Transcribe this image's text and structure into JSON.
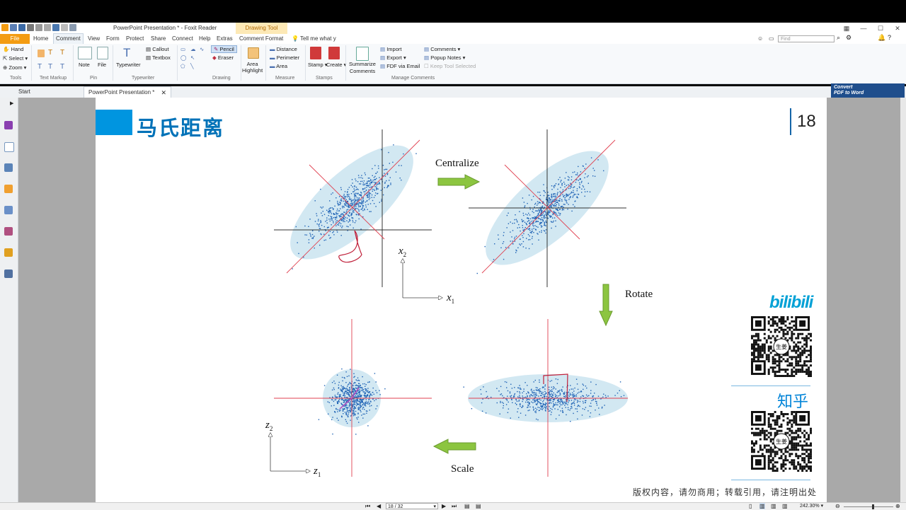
{
  "window": {
    "title": "PowerPoint Presentation * - Foxit Reader",
    "context_tab": "Drawing Tool"
  },
  "menu": {
    "file": "File",
    "items": [
      "Home",
      "Comment",
      "View",
      "Form",
      "Protect",
      "Share",
      "Connect",
      "Help",
      "Extras",
      "Comment Format"
    ],
    "active": "Comment",
    "tell_me": "Tell me what y",
    "find_placeholder": "Find"
  },
  "ribbon": {
    "tools": {
      "hand": "Hand",
      "select": "Select",
      "zoom": "Zoom",
      "group": "Tools"
    },
    "text_markup": {
      "group": "Text Markup"
    },
    "pin": {
      "note": "Note",
      "file": "File",
      "group": "Pin"
    },
    "typewriter": {
      "typewriter": "Typewriter",
      "callout": "Callout",
      "textbox": "Textbox",
      "group": "Typewriter"
    },
    "drawing": {
      "pencil": "Pencil",
      "eraser": "Eraser",
      "group": "Drawing"
    },
    "area_highlight": "Area\nHighlight",
    "measure": {
      "distance": "Distance",
      "perimeter": "Perimeter",
      "area": "Area",
      "group": "Measure"
    },
    "stamps": {
      "stamp": "Stamp",
      "create": "Create",
      "group": "Stamps"
    },
    "manage": {
      "summarize": "Summarize\nComments",
      "import": "Import",
      "export": "Export",
      "fdf_email": "FDF via Email",
      "comments": "Comments",
      "popup_notes": "Popup Notes",
      "keep_tool": "Keep Tool Selected",
      "group": "Manage Comments"
    }
  },
  "tabs": {
    "start": "Start",
    "doc": "PowerPoint Presentation *"
  },
  "convert": {
    "line1": "Convert",
    "line2": "PDF to Word"
  },
  "slide": {
    "heading": "马氏距离",
    "page_number": "18",
    "labels": {
      "centralize": "Centralize",
      "rotate": "Rotate",
      "scale": "Scale"
    },
    "axes_top": {
      "x": "x",
      "x_sub": "1",
      "y": "x",
      "y_sub": "2"
    },
    "axes_bottom": {
      "x": "z",
      "x_sub": "1",
      "y": "z",
      "y_sub": "2"
    },
    "brand1": "bilibili",
    "brand2": "知乎",
    "qr_center": "生姜",
    "copyright": "版权内容，请勿商用；转载引用，请注明出处"
  },
  "status": {
    "page": "18 / 32",
    "zoom": "242.30%"
  }
}
